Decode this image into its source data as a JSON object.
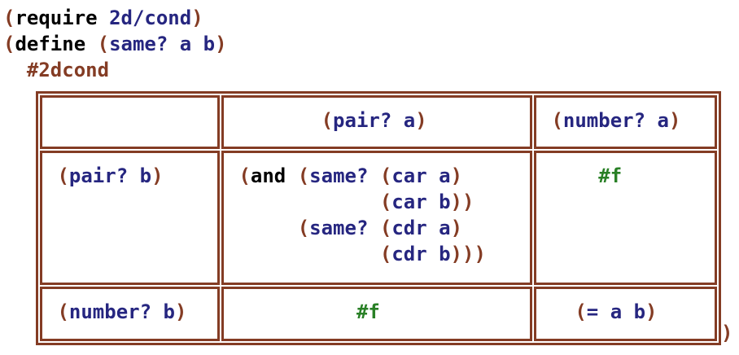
{
  "colors": {
    "paren": "#843C24",
    "keyword": "#000000",
    "symbol": "#262680",
    "value": "#298026",
    "hash_lang": "#843C24",
    "table_border": "#843C24",
    "background": "#FFFFFF"
  },
  "code": {
    "lines": [
      {
        "name": "require-line",
        "text": "(require 2d/cond)",
        "tokens": [
          {
            "t": "(",
            "c": "paren"
          },
          {
            "t": "require",
            "c": "keyword"
          },
          {
            "t": " ",
            "c": "keyword"
          },
          {
            "t": "2d/cond",
            "c": "symbol"
          },
          {
            "t": ")",
            "c": "paren"
          }
        ]
      },
      {
        "name": "define-line",
        "text": "(define (same? a b)",
        "tokens": [
          {
            "t": "(",
            "c": "paren"
          },
          {
            "t": "define",
            "c": "keyword"
          },
          {
            "t": " ",
            "c": "keyword"
          },
          {
            "t": "(",
            "c": "paren"
          },
          {
            "t": "same? a b",
            "c": "symbol"
          },
          {
            "t": ")",
            "c": "paren"
          }
        ]
      },
      {
        "name": "2dcond-line",
        "text": "  #2dcond",
        "tokens": [
          {
            "t": "  #2dcond",
            "c": "hash"
          }
        ]
      }
    ],
    "closing_paren": ")"
  },
  "cond_table": {
    "rows": [
      {
        "cells": [
          {
            "name": "header-empty",
            "text": "",
            "tokens": []
          },
          {
            "name": "header-pair-a",
            "text": "(pair? a)",
            "tokens": [
              {
                "t": "        (",
                "c": "paren"
              },
              {
                "t": "pair? a",
                "c": "symbol"
              },
              {
                "t": ")",
                "c": "paren"
              }
            ]
          },
          {
            "name": "header-number-a",
            "text": "(number? a)",
            "tokens": [
              {
                "t": " (",
                "c": "paren"
              },
              {
                "t": "number? a",
                "c": "symbol"
              },
              {
                "t": ")",
                "c": "paren"
              }
            ]
          }
        ]
      },
      {
        "cells": [
          {
            "name": "row-pair-b",
            "text": "(pair? b)",
            "tokens": [
              {
                "t": " (",
                "c": "paren"
              },
              {
                "t": "pair? b",
                "c": "symbol"
              },
              {
                "t": ")",
                "c": "paren"
              }
            ]
          },
          {
            "name": "cell-and-same-car-cdr",
            "text": "(and (same? (car a) (car b)) (same? (cdr a) (cdr b)))",
            "tokens": [
              {
                "t": " (",
                "c": "paren"
              },
              {
                "t": "and",
                "c": "keyword"
              },
              {
                "t": " ",
                "c": "keyword"
              },
              {
                "t": "(",
                "c": "paren"
              },
              {
                "t": "same?",
                "c": "symbol"
              },
              {
                "t": " ",
                "c": "symbol"
              },
              {
                "t": "(",
                "c": "paren"
              },
              {
                "t": "car a",
                "c": "symbol"
              },
              {
                "t": ")\n             (",
                "c": "paren"
              },
              {
                "t": "car b",
                "c": "symbol"
              },
              {
                "t": "))\n      (",
                "c": "paren"
              },
              {
                "t": "same?",
                "c": "symbol"
              },
              {
                "t": " ",
                "c": "symbol"
              },
              {
                "t": "(",
                "c": "paren"
              },
              {
                "t": "cdr a",
                "c": "symbol"
              },
              {
                "t": ")\n             (",
                "c": "paren"
              },
              {
                "t": "cdr b",
                "c": "symbol"
              },
              {
                "t": ")))",
                "c": "paren"
              }
            ]
          },
          {
            "name": "cell-false-top-right",
            "text": "#f",
            "tokens": [
              {
                "t": "     #f",
                "c": "value"
              }
            ]
          }
        ]
      },
      {
        "cells": [
          {
            "name": "row-number-b",
            "text": "(number? b)",
            "tokens": [
              {
                "t": " (",
                "c": "paren"
              },
              {
                "t": "number? b",
                "c": "symbol"
              },
              {
                "t": ")",
                "c": "paren"
              }
            ]
          },
          {
            "name": "cell-false-bottom-middle",
            "text": "#f",
            "tokens": [
              {
                "t": "           #f",
                "c": "value"
              }
            ]
          },
          {
            "name": "cell-equal-a-b",
            "text": "(= a b)",
            "tokens": [
              {
                "t": "   (",
                "c": "paren"
              },
              {
                "t": "= a b",
                "c": "symbol"
              },
              {
                "t": ")",
                "c": "paren"
              }
            ]
          }
        ]
      }
    ]
  }
}
